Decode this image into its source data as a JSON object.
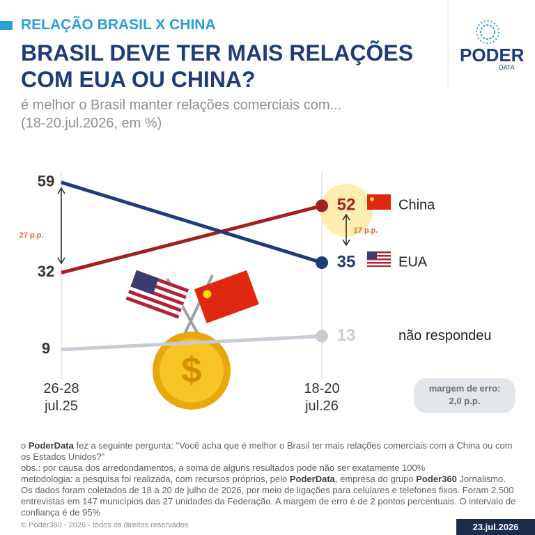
{
  "header": {
    "kicker": "RELAÇÃO BRASIL X CHINA",
    "title": [
      "BRASIL DEVE TER MAIS RELAÇÕES",
      "COM EUA OU CHINA?"
    ],
    "subtitle": [
      "é melhor o Brasil manter relações comerciais com...",
      "(18-20.jul.2026, em %)"
    ]
  },
  "logo": {
    "name": "PODER",
    "sub": "DATA"
  },
  "chart_data": {
    "type": "line",
    "categories": [
      "26-28 jul.25",
      "18-20 jul.26"
    ],
    "series": [
      {
        "name": "China",
        "color": "#a3201f",
        "values": [
          32,
          52
        ]
      },
      {
        "name": "EUA",
        "color": "#1f3c78",
        "values": [
          59,
          35
        ]
      },
      {
        "name": "não respondeu",
        "color": "#c5ccd4",
        "values": [
          9,
          13
        ]
      }
    ],
    "ylim": [
      0,
      70
    ],
    "annotations": [
      {
        "text": "27 p.p."
      },
      {
        "text": "17 p.p."
      }
    ]
  },
  "note": {
    "label": "margem de erro:",
    "value": "2,0 p.p."
  },
  "footer": {
    "paragraphs": [
      [
        "o ",
        "PoderData",
        " fez a seguinte pergunta: \"Você acha que é melhor o Brasil ter mais relações comerciais com a China ou com os Estados Unidos?\""
      ],
      [
        "obs.: por causa dos arredondamentos, a soma de alguns resultados pode não ser exatamente 100%"
      ],
      [
        "metodologia: a pesquisa foi realizada, com recursos próprios, pelo ",
        "PoderData",
        ", empresa do grupo ",
        "Poder360",
        " Jornalismo. Os dados foram coletados de 18 a 20 de julho de 2026, por meio de ligações para celulares e telefones fixos. Foram 2.500 entrevistas em 147 municípios das 27 unidades da Federação. A margem de erro é de 2 pontos percentuais. O intervalo de confiança é de 95%"
      ]
    ],
    "copyright": "© Poder360 - 2026 - todos os direitos reservados",
    "date": "23.jul.2026"
  }
}
